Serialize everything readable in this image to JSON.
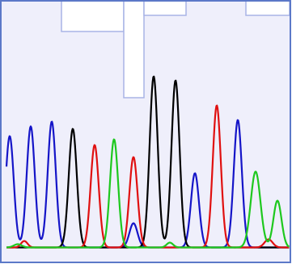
{
  "chart_data": {
    "type": "line",
    "title": "",
    "xlabel": "",
    "ylabel": "",
    "xlim": [
      0,
      350
    ],
    "ylim": [
      0,
      225
    ],
    "grid": false,
    "legend": "none",
    "background_color": "#efeffb",
    "border_color": "#5b78c8",
    "quality_region_color": "#ffffff",
    "quality_outline_color": "#a8b4e6",
    "quality_profile": [
      {
        "x0": 68,
        "x1": 145,
        "top": 225,
        "bottom": 194
      },
      {
        "x0": 145,
        "x1": 170,
        "top": 225,
        "bottom": 112
      },
      {
        "x0": 170,
        "x1": 222,
        "top": 225,
        "bottom": 214
      },
      {
        "x0": 296,
        "x1": 350,
        "top": 225,
        "bottom": 214
      }
    ],
    "series": [
      {
        "color": "#1515c8",
        "peaks": [
          {
            "x": 4,
            "height": 138,
            "width": 5
          },
          {
            "x": 30,
            "height": 150,
            "width": 5
          },
          {
            "x": 56,
            "height": 156,
            "width": 5
          },
          {
            "x": 157,
            "height": 30,
            "width": 5
          },
          {
            "x": 233,
            "height": 92,
            "width": 5
          },
          {
            "x": 286,
            "height": 158,
            "width": 5
          }
        ]
      },
      {
        "color": "#000000",
        "peaks": [
          {
            "x": 82,
            "height": 147,
            "width": 5
          },
          {
            "x": 182,
            "height": 212,
            "width": 5
          },
          {
            "x": 209,
            "height": 207,
            "width": 5
          }
        ]
      },
      {
        "color": "#e01010",
        "peaks": [
          {
            "x": 22,
            "height": 8,
            "width": 4
          },
          {
            "x": 109,
            "height": 127,
            "width": 5
          },
          {
            "x": 157,
            "height": 112,
            "width": 5
          },
          {
            "x": 260,
            "height": 176,
            "width": 5
          },
          {
            "x": 324,
            "height": 10,
            "width": 5
          }
        ]
      },
      {
        "color": "#1ec81e",
        "peaks": [
          {
            "x": 14,
            "height": 4,
            "width": 5
          },
          {
            "x": 133,
            "height": 134,
            "width": 5
          },
          {
            "x": 202,
            "height": 6,
            "width": 4
          },
          {
            "x": 308,
            "height": 94,
            "width": 6
          },
          {
            "x": 335,
            "height": 58,
            "width": 5
          }
        ]
      }
    ]
  }
}
